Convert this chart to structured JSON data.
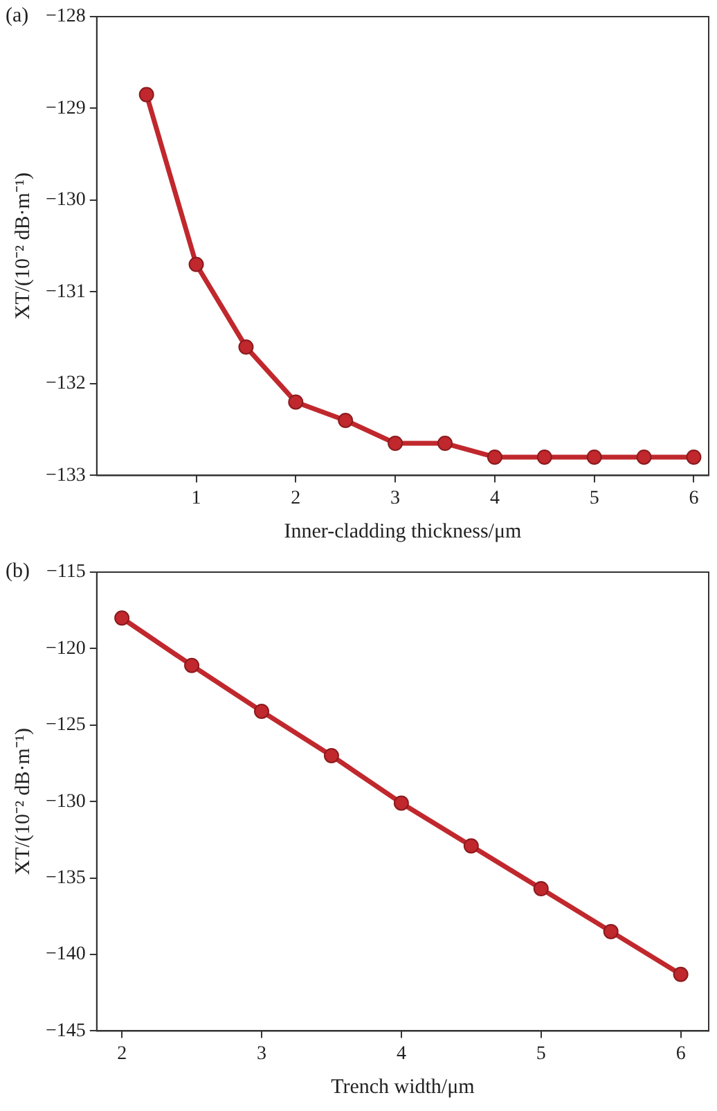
{
  "chart_data": [
    {
      "type": "line",
      "annotations": [
        "(a)"
      ],
      "xlabel": "Inner-cladding thickness/μm",
      "ylabel": "XT/(10⁻² dB·m⁻¹)",
      "x": [
        0.5,
        1,
        1.5,
        2,
        2.5,
        3,
        3.5,
        4,
        4.5,
        5,
        5.5,
        6
      ],
      "series": [
        {
          "color": "#c0282d",
          "values": [
            -128.85,
            -130.7,
            -131.6,
            -132.2,
            -132.4,
            -132.65,
            -132.65,
            -132.8,
            -132.8,
            -132.8,
            -132.8,
            -132.8
          ]
        }
      ],
      "xlim": [
        0,
        6.15
      ],
      "xticks": [
        1,
        2,
        3,
        4,
        5,
        6
      ],
      "ylim": [
        -133,
        -128
      ],
      "yticks": [
        -133,
        -132,
        -131,
        -130,
        -129,
        -128
      ],
      "grid": false,
      "legend": false,
      "marker": "circle",
      "line_style": "solid"
    },
    {
      "type": "line",
      "annotations": [
        "(b)"
      ],
      "xlabel": "Trench width/μm",
      "ylabel": "XT/(10⁻² dB·m⁻¹)",
      "x": [
        2,
        2.5,
        3,
        3.5,
        4,
        4.5,
        5,
        5.5,
        6
      ],
      "series": [
        {
          "color": "#c0282d",
          "values": [
            -118,
            -121.1,
            -124.1,
            -127,
            -130.1,
            -132.9,
            -135.7,
            -138.5,
            -141.3
          ]
        }
      ],
      "xlim": [
        1.82,
        6.2
      ],
      "xticks": [
        2,
        3,
        4,
        5,
        6
      ],
      "ylim": [
        -145,
        -115
      ],
      "yticks": [
        -145,
        -140,
        -135,
        -130,
        -125,
        -120,
        -115
      ],
      "grid": false,
      "legend": false,
      "marker": "circle",
      "line_style": "solid"
    }
  ]
}
